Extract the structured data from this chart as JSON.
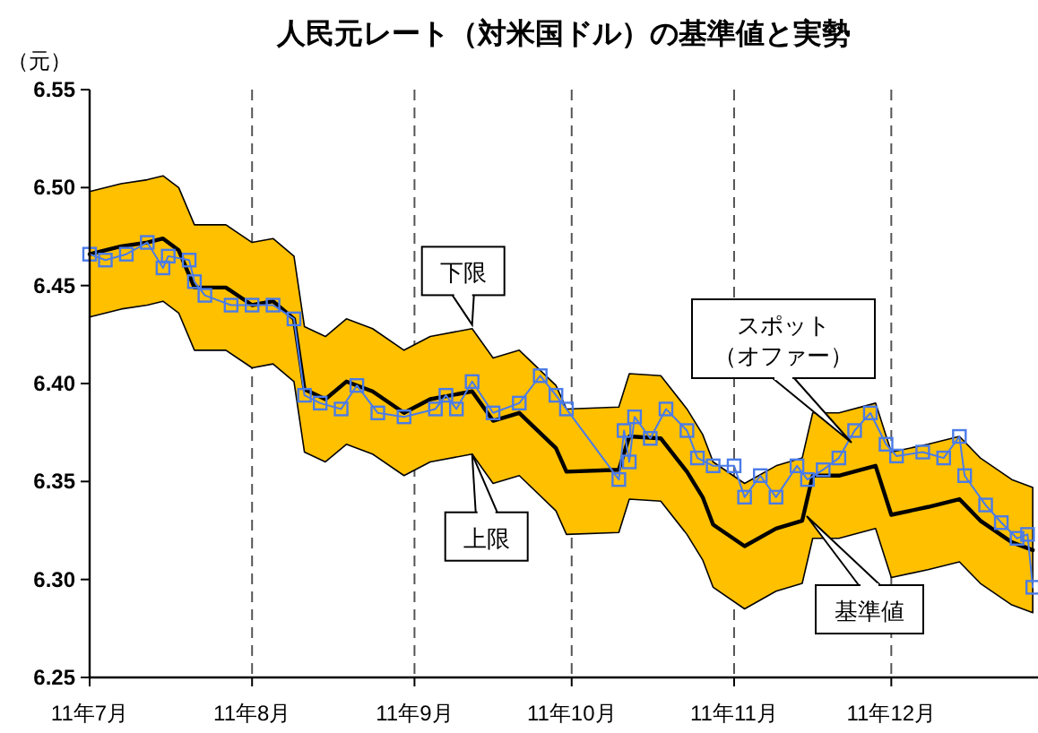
{
  "chart_data": {
    "type": "line",
    "title": "人民元レート（対米国ドル）の基準値と実勢",
    "ylabel": "（元）",
    "xlim": [
      "2011-07-01",
      "2011-12-29"
    ],
    "xticks": [
      {
        "value": "2011-07-01",
        "label": "11年7月"
      },
      {
        "value": "2011-08-01",
        "label": "11年8月"
      },
      {
        "value": "2011-09-01",
        "label": "11年9月"
      },
      {
        "value": "2011-10-01",
        "label": "11年10月"
      },
      {
        "value": "2011-11-01",
        "label": "11年11月"
      },
      {
        "value": "2011-12-01",
        "label": "11年12月"
      }
    ],
    "ylim": [
      6.25,
      6.55
    ],
    "yticks": [
      {
        "value": 6.25,
        "label": "6.25"
      },
      {
        "value": 6.3,
        "label": "6.30"
      },
      {
        "value": 6.35,
        "label": "6.35"
      },
      {
        "value": 6.4,
        "label": "6.40"
      },
      {
        "value": 6.45,
        "label": "6.45"
      },
      {
        "value": 6.5,
        "label": "6.50"
      },
      {
        "value": 6.55,
        "label": "6.55"
      }
    ],
    "ref_lines": [
      {
        "axis": "x",
        "value": "2011-08-01",
        "line_style": "dashed",
        "color": "#555555"
      },
      {
        "axis": "x",
        "value": "2011-09-01",
        "line_style": "dashed",
        "color": "#555555"
      },
      {
        "axis": "x",
        "value": "2011-10-01",
        "line_style": "dashed",
        "color": "#555555"
      },
      {
        "axis": "x",
        "value": "2011-11-01",
        "line_style": "dashed",
        "color": "#555555"
      },
      {
        "axis": "x",
        "value": "2011-12-01",
        "line_style": "dashed",
        "color": "#555555"
      }
    ],
    "series": [
      {
        "color": "#000000",
        "marker": "none",
        "x": [
          "2011-07-01",
          "2011-07-07",
          "2011-07-12",
          "2011-07-15",
          "2011-07-18",
          "2011-07-21",
          "2011-07-27",
          "2011-08-01",
          "2011-08-05",
          "2011-08-09",
          "2011-08-11",
          "2011-08-15",
          "2011-08-19",
          "2011-08-24",
          "2011-08-30",
          "2011-09-04",
          "2011-09-12",
          "2011-09-16",
          "2011-09-21",
          "2011-09-28",
          "2011-09-30",
          "2011-10-10",
          "2011-10-12",
          "2011-10-18",
          "2011-10-23",
          "2011-10-26",
          "2011-10-28",
          "2011-11-03",
          "2011-11-09",
          "2011-11-14",
          "2011-11-16",
          "2011-11-21",
          "2011-11-28",
          "2011-12-01",
          "2011-12-08",
          "2011-12-14",
          "2011-12-18",
          "2011-12-24",
          "2011-12-28"
        ],
        "values": [
          6.466,
          6.47,
          6.472,
          6.474,
          6.468,
          6.449,
          6.449,
          6.44,
          6.442,
          6.433,
          6.397,
          6.392,
          6.401,
          6.396,
          6.385,
          6.392,
          6.396,
          6.381,
          6.385,
          6.367,
          6.355,
          6.356,
          6.373,
          6.372,
          6.355,
          6.342,
          6.328,
          6.317,
          6.326,
          6.33,
          6.353,
          6.353,
          6.358,
          6.333,
          6.337,
          6.341,
          6.33,
          6.319,
          6.315
        ],
        "upper": [
          6.498,
          6.502,
          6.504,
          6.506,
          6.5,
          6.481,
          6.481,
          6.472,
          6.474,
          6.465,
          6.429,
          6.424,
          6.433,
          6.428,
          6.417,
          6.424,
          6.428,
          6.413,
          6.417,
          6.399,
          6.387,
          6.388,
          6.405,
          6.404,
          6.387,
          6.374,
          6.36,
          6.349,
          6.358,
          6.362,
          6.385,
          6.385,
          6.39,
          6.365,
          6.369,
          6.373,
          6.362,
          6.351,
          6.347
        ],
        "lower": [
          6.434,
          6.438,
          6.44,
          6.442,
          6.436,
          6.417,
          6.417,
          6.408,
          6.41,
          6.401,
          6.365,
          6.36,
          6.369,
          6.364,
          6.353,
          6.36,
          6.364,
          6.349,
          6.353,
          6.335,
          6.323,
          6.324,
          6.341,
          6.34,
          6.323,
          6.31,
          6.296,
          6.285,
          6.294,
          6.298,
          6.321,
          6.321,
          6.326,
          6.301,
          6.305,
          6.309,
          6.298,
          6.287,
          6.283
        ]
      },
      {
        "color": "#4a7be8",
        "marker": "square",
        "x": [
          "2011-07-01",
          "2011-07-04",
          "2011-07-08",
          "2011-07-12",
          "2011-07-15",
          "2011-07-16",
          "2011-07-20",
          "2011-07-21",
          "2011-07-23",
          "2011-07-28",
          "2011-08-01",
          "2011-08-05",
          "2011-08-09",
          "2011-08-11",
          "2011-08-14",
          "2011-08-18",
          "2011-08-21",
          "2011-08-25",
          "2011-08-30",
          "2011-09-05",
          "2011-09-07",
          "2011-09-09",
          "2011-09-12",
          "2011-09-16",
          "2011-09-21",
          "2011-09-25",
          "2011-09-28",
          "2011-09-30",
          "2011-10-10",
          "2011-10-11",
          "2011-10-12",
          "2011-10-13",
          "2011-10-16",
          "2011-10-19",
          "2011-10-23",
          "2011-10-25",
          "2011-10-28",
          "2011-11-01",
          "2011-11-03",
          "2011-11-06",
          "2011-11-09",
          "2011-11-13",
          "2011-11-15",
          "2011-11-18",
          "2011-11-21",
          "2011-11-24",
          "2011-11-27",
          "2011-11-30",
          "2011-12-02",
          "2011-12-07",
          "2011-12-11",
          "2011-12-14",
          "2011-12-15",
          "2011-12-19",
          "2011-12-22",
          "2011-12-25",
          "2011-12-27",
          "2011-12-28"
        ],
        "values": [
          6.466,
          6.463,
          6.466,
          6.472,
          6.459,
          6.465,
          6.463,
          6.452,
          6.445,
          6.44,
          6.44,
          6.44,
          6.433,
          6.394,
          6.39,
          6.387,
          6.399,
          6.385,
          6.383,
          6.387,
          6.394,
          6.387,
          6.401,
          6.385,
          6.39,
          6.404,
          6.394,
          6.387,
          6.351,
          6.376,
          6.36,
          6.383,
          6.372,
          6.387,
          6.376,
          6.362,
          6.358,
          6.358,
          6.342,
          6.353,
          6.342,
          6.358,
          6.351,
          6.356,
          6.362,
          6.376,
          6.385,
          6.369,
          6.363,
          6.365,
          6.362,
          6.373,
          6.353,
          6.338,
          6.329,
          6.321,
          6.323,
          6.296
        ]
      }
    ],
    "annotations": [
      {
        "text": "下限",
        "x": "2011-09-12",
        "y": 6.43
      },
      {
        "text": "上限",
        "x": "2011-09-12",
        "y": 6.364
      },
      "スポット（オファー）",
      "基準値"
    ]
  }
}
